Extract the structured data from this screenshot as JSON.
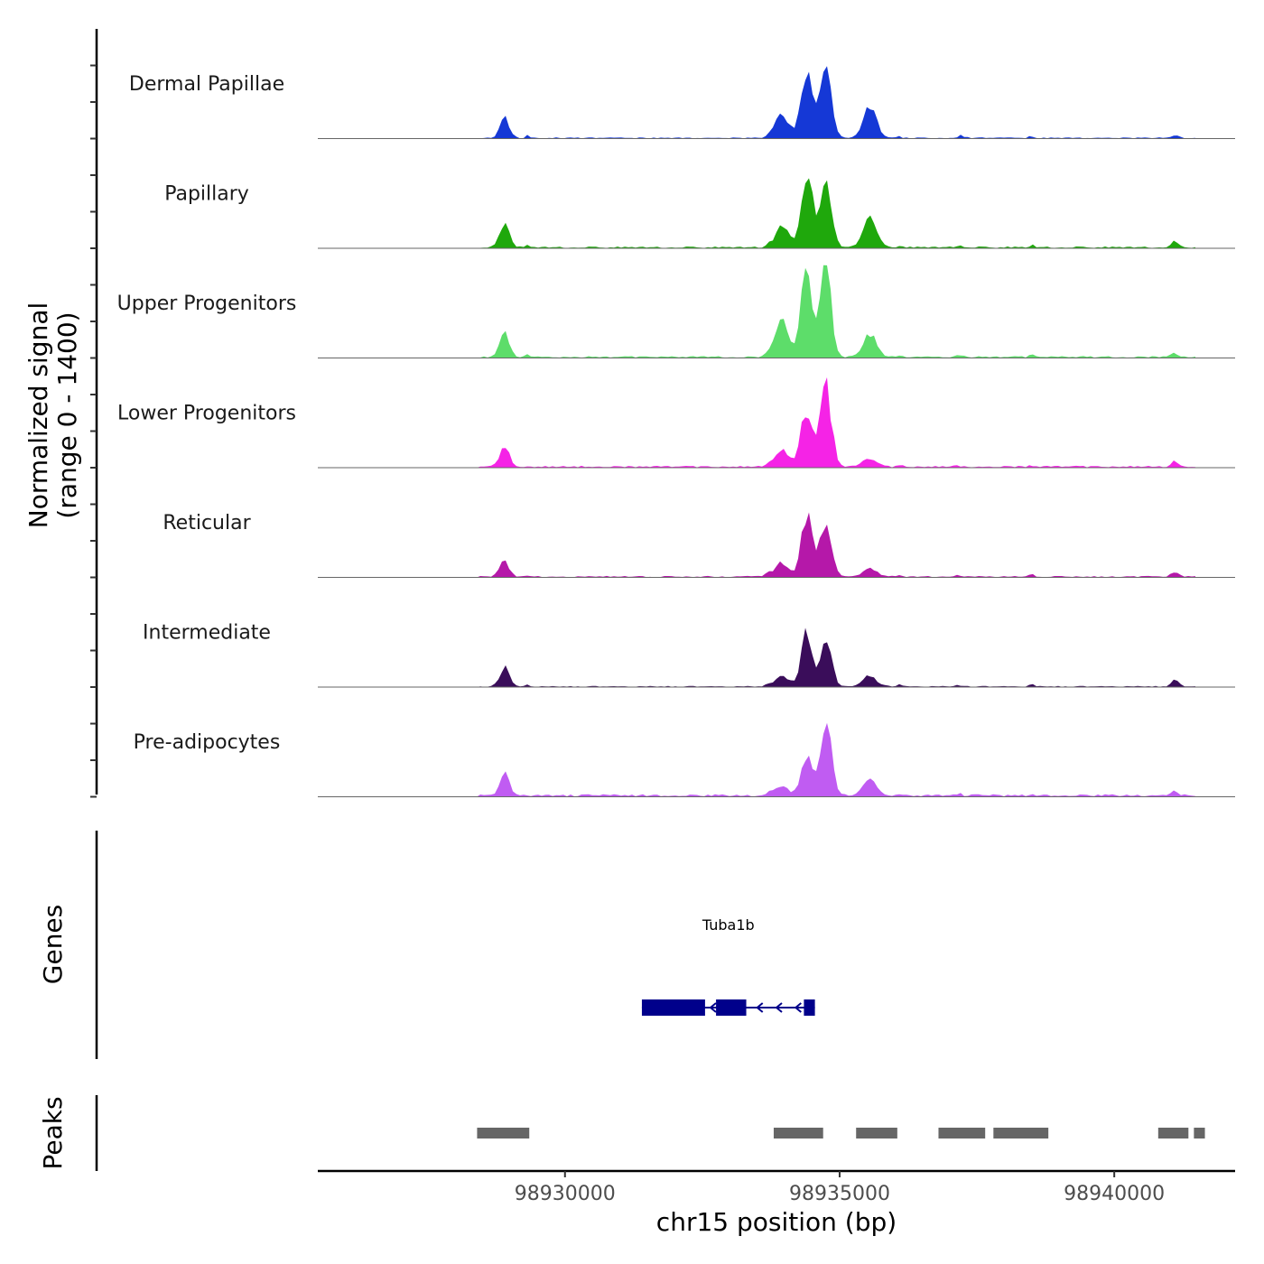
{
  "chart_data": {
    "type": "area",
    "title": "",
    "chrom": "chr15",
    "xlim": [
      98925500,
      98942200
    ],
    "xlabel": "chr15 position (bp)",
    "ylabel": "Normalized signal",
    "ylabel_sub": "(range 0 - 1400)",
    "ylim": [
      0,
      1400
    ],
    "x_ticks": [
      98930000,
      98935000,
      98940000
    ],
    "x_tick_labels": [
      "98930000",
      "98935000",
      "98940000"
    ],
    "peak_centers": [
      98928900,
      98933700,
      98933950,
      98934400,
      98934750,
      98935550
    ],
    "series": [
      {
        "name": "Dermal Papillae",
        "color": "#1538d6",
        "h": [
          280,
          30,
          350,
          1000,
          1100,
          450
        ],
        "bg": 10
      },
      {
        "name": "Papillary",
        "color": "#1fa80c",
        "h": [
          380,
          40,
          300,
          1140,
          1060,
          420
        ],
        "bg": 15
      },
      {
        "name": "Upper Progenitors",
        "color": "#5ddd6a",
        "h": [
          360,
          60,
          500,
          1300,
          1300,
          320
        ],
        "bg": 15
      },
      {
        "name": "Lower Progenitors",
        "color": "#f523e6",
        "h": [
          290,
          40,
          280,
          850,
          1200,
          120
        ],
        "bg": 15
      },
      {
        "name": "Reticular",
        "color": "#b518a9",
        "h": [
          230,
          60,
          200,
          880,
          850,
          120
        ],
        "bg": 12
      },
      {
        "name": "Intermediate",
        "color": "#3a0d5a",
        "h": [
          270,
          40,
          150,
          750,
          710,
          160
        ],
        "bg": 10
      },
      {
        "name": "Pre-adipocytes",
        "color": "#c05cf2",
        "h": [
          310,
          40,
          150,
          600,
          1100,
          250
        ],
        "bg": 20
      }
    ],
    "extra_peak": {
      "x": 98941100,
      "h": [
        40,
        80,
        60,
        80,
        70,
        100,
        70
      ]
    },
    "genes": {
      "track_title": "Genes",
      "items": [
        {
          "name": "Tuba1b",
          "start": 98931400,
          "end": 98934550,
          "strand": "-",
          "exons": [
            [
              98931400,
              98932550
            ],
            [
              98932750,
              98933300
            ],
            [
              98934350,
              98934550
            ]
          ],
          "color": "#00008b"
        }
      ]
    },
    "peaks": {
      "track_title": "Peaks",
      "color": "#666666",
      "ranges": [
        [
          98928400,
          98929350
        ],
        [
          98933800,
          98934700
        ],
        [
          98935300,
          98936050
        ],
        [
          98936800,
          98937650
        ],
        [
          98937800,
          98938800
        ],
        [
          98940800,
          98941350
        ],
        [
          98941450,
          98941650
        ]
      ]
    }
  }
}
